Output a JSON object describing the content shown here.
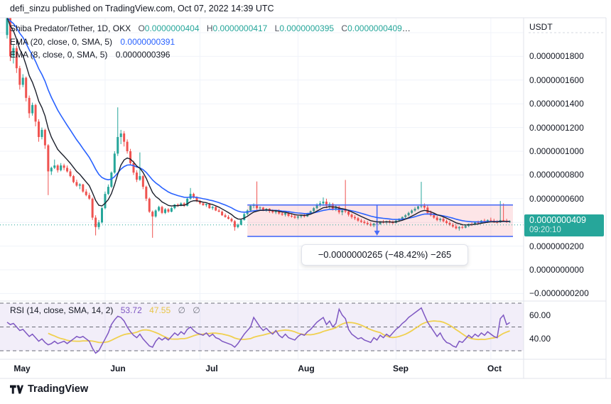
{
  "header": {
    "attribution": "defi_sinzu published on TradingView.com, Oct 07, 2022 14:39 UTC"
  },
  "main_legend": {
    "symbol_title": "Shiba Predator/Tether, 1D, OKX",
    "o_label": "O",
    "o_value": "0.0000000404",
    "h_label": "H",
    "h_value": "0.0000000417",
    "l_label": "L",
    "l_value": "0.0000000395",
    "c_label": "C",
    "c_value": "0.0000000409",
    "ellipsis": "…",
    "ema20_label": "EMA (20, close, 0, SMA, 5)",
    "ema20_value": "0.0000000391",
    "ema8_label": "EMA (8, close, 0, SMA, 5)",
    "ema8_value": "0.0000000396"
  },
  "price_axis": {
    "currency_label": "USDT",
    "ticks": [
      "0.0000001800",
      "0.0000001600",
      "0.0000001400",
      "0.0000001200",
      "0.0000001000",
      "0.0000000800",
      "0.0000000600",
      "0.0000000200",
      "0.0000000000",
      "−0.0000000200"
    ],
    "last_price_label": "0.0000000409",
    "countdown": "09:20:10"
  },
  "annotation": {
    "text": "−0.0000000265 (−48.42%) −265"
  },
  "rsi_legend": {
    "title": "RSI (14, close, SMA, 14, 2)",
    "rsi_value": "53.72",
    "ma_value": "47.55",
    "empty_1": "∅",
    "empty_2": "∅"
  },
  "rsi_axis": {
    "ticks": [
      "60.00",
      "40.00"
    ]
  },
  "time_axis": {
    "labels": [
      "May",
      "Jun",
      "Jul",
      "Aug",
      "Sep",
      "Oct"
    ]
  },
  "footer": {
    "brand": "TradingView"
  },
  "colors": {
    "up": "#26a69a",
    "down": "#ef5350",
    "ema20": "#2962ff",
    "ema8": "#1b1f2b",
    "rsi_line": "#7e57c2",
    "rsi_ma_line": "#f0d04f",
    "rsi_band_fill": "rgba(126,87,194,0.10)",
    "rsi_level_dash": "#6b6e78",
    "range_tool_fill": "rgba(242,54,69,0.13)",
    "range_tool_border": "#4a6cf7",
    "last_price_line": "#26a69a",
    "badge_bg": "#26a69a",
    "grid": "#f0f3fa",
    "frame_border": "#e0e3eb",
    "text": "#131722",
    "muted": "#787b86"
  },
  "chart_data": [
    {
      "type": "candlestick",
      "title": "Shiba Predator/Tether, 1D, OKX",
      "exchange": "OKX",
      "interval": "1D",
      "unit": 1e-10,
      "ylabel": "USDT",
      "ylim": [
        -300,
        2200
      ],
      "y_ticks": [
        2000,
        1800,
        1600,
        1400,
        1200,
        1000,
        800,
        600,
        400,
        200,
        0,
        -200
      ],
      "month_start_indices": {
        "May": 0,
        "Jun": 31,
        "Jul": 61,
        "Aug": 92,
        "Sep": 123,
        "Oct": 153
      },
      "last_price": 409,
      "overlays": [
        {
          "name": "EMA 20",
          "type": "ema",
          "period": 20,
          "source": "close"
        },
        {
          "name": "EMA 8",
          "type": "ema",
          "period": 8,
          "source": "close"
        }
      ],
      "price_range_tool": {
        "from_index": 76,
        "to_index": 160,
        "arrow_index": 117,
        "top": 547,
        "bottom": 282,
        "change": -265,
        "change_pct": -48.42,
        "label": "−0.0000000265 (−48.42%) −265"
      },
      "candles": [
        [
          1980,
          2185,
          1950,
          2130
        ],
        [
          2130,
          2150,
          1760,
          1800
        ],
        [
          1800,
          1900,
          1740,
          1870
        ],
        [
          1870,
          1890,
          1660,
          1700
        ],
        [
          1700,
          1720,
          1520,
          1560
        ],
        [
          1560,
          1650,
          1540,
          1620
        ],
        [
          1620,
          1630,
          1420,
          1450
        ],
        [
          1450,
          1470,
          1280,
          1320
        ],
        [
          1320,
          1410,
          1300,
          1390
        ],
        [
          1390,
          1400,
          1210,
          1250
        ],
        [
          1250,
          1270,
          1080,
          1120
        ],
        [
          1120,
          1200,
          1100,
          1180
        ],
        [
          1180,
          1190,
          1020,
          1050
        ],
        [
          1050,
          1060,
          630,
          830
        ],
        [
          830,
          870,
          800,
          860
        ],
        [
          860,
          930,
          850,
          880
        ],
        [
          880,
          890,
          820,
          840
        ],
        [
          840,
          900,
          830,
          880
        ],
        [
          880,
          895,
          840,
          860
        ],
        [
          860,
          880,
          820,
          830
        ],
        [
          830,
          850,
          780,
          790
        ],
        [
          790,
          800,
          730,
          740
        ],
        [
          740,
          760,
          700,
          710
        ],
        [
          710,
          730,
          680,
          720
        ],
        [
          720,
          725,
          650,
          660
        ],
        [
          660,
          680,
          620,
          630
        ],
        [
          630,
          650,
          590,
          600
        ],
        [
          600,
          610,
          420,
          440
        ],
        [
          440,
          460,
          290,
          360
        ],
        [
          360,
          420,
          340,
          400
        ],
        [
          400,
          530,
          390,
          520
        ],
        [
          520,
          660,
          510,
          640
        ],
        [
          640,
          720,
          630,
          700
        ],
        [
          700,
          830,
          690,
          820
        ],
        [
          820,
          1000,
          810,
          980
        ],
        [
          980,
          1370,
          960,
          1120
        ],
        [
          1120,
          1180,
          1060,
          1150
        ],
        [
          1150,
          1170,
          1040,
          1080
        ],
        [
          1080,
          1100,
          980,
          1000
        ],
        [
          1000,
          1020,
          880,
          900
        ],
        [
          900,
          920,
          800,
          820
        ],
        [
          820,
          840,
          740,
          760
        ],
        [
          760,
          990,
          750,
          790
        ],
        [
          790,
          800,
          680,
          700
        ],
        [
          700,
          710,
          580,
          600
        ],
        [
          600,
          610,
          480,
          490
        ],
        [
          490,
          500,
          270,
          450
        ],
        [
          450,
          510,
          440,
          500
        ],
        [
          500,
          540,
          490,
          530
        ],
        [
          530,
          540,
          470,
          480
        ],
        [
          480,
          520,
          470,
          510
        ],
        [
          510,
          520,
          480,
          490
        ],
        [
          490,
          530,
          485,
          520
        ],
        [
          520,
          555,
          510,
          550
        ],
        [
          550,
          560,
          530,
          540
        ],
        [
          540,
          570,
          535,
          560
        ],
        [
          560,
          570,
          530,
          540
        ],
        [
          540,
          610,
          535,
          600
        ],
        [
          600,
          690,
          590,
          640
        ],
        [
          640,
          650,
          600,
          610
        ],
        [
          610,
          620,
          570,
          580
        ],
        [
          580,
          590,
          550,
          560
        ],
        [
          560,
          575,
          540,
          545
        ],
        [
          545,
          560,
          530,
          555
        ],
        [
          555,
          565,
          515,
          520
        ],
        [
          520,
          540,
          505,
          530
        ],
        [
          530,
          535,
          495,
          500
        ],
        [
          500,
          515,
          485,
          490
        ],
        [
          490,
          500,
          455,
          460
        ],
        [
          460,
          475,
          440,
          445
        ],
        [
          445,
          460,
          425,
          430
        ],
        [
          430,
          440,
          400,
          410
        ],
        [
          410,
          420,
          330,
          360
        ],
        [
          360,
          390,
          350,
          380
        ],
        [
          380,
          430,
          375,
          420
        ],
        [
          420,
          480,
          415,
          470
        ],
        [
          470,
          510,
          460,
          500
        ],
        [
          500,
          550,
          490,
          540
        ],
        [
          540,
          560,
          520,
          545
        ],
        [
          545,
          745,
          505,
          520
        ],
        [
          520,
          535,
          500,
          525
        ],
        [
          525,
          530,
          495,
          505
        ],
        [
          505,
          520,
          490,
          515
        ],
        [
          515,
          520,
          480,
          495
        ],
        [
          495,
          510,
          475,
          485
        ],
        [
          485,
          505,
          470,
          500
        ],
        [
          500,
          510,
          465,
          475
        ],
        [
          475,
          490,
          455,
          465
        ],
        [
          465,
          485,
          450,
          480
        ],
        [
          480,
          490,
          445,
          455
        ],
        [
          455,
          470,
          440,
          450
        ],
        [
          450,
          465,
          430,
          440
        ],
        [
          440,
          455,
          425,
          450
        ],
        [
          450,
          465,
          435,
          460
        ],
        [
          460,
          470,
          440,
          450
        ],
        [
          450,
          480,
          445,
          475
        ],
        [
          475,
          500,
          465,
          495
        ],
        [
          495,
          530,
          480,
          520
        ],
        [
          520,
          560,
          510,
          545
        ],
        [
          545,
          580,
          530,
          560
        ],
        [
          560,
          610,
          540,
          575
        ],
        [
          575,
          600,
          520,
          540
        ],
        [
          540,
          570,
          510,
          555
        ],
        [
          555,
          565,
          500,
          515
        ],
        [
          515,
          545,
          495,
          530
        ],
        [
          530,
          540,
          470,
          485
        ],
        [
          485,
          520,
          460,
          500
        ],
        [
          505,
          758,
          478,
          492
        ],
        [
          492,
          505,
          450,
          465
        ],
        [
          465,
          475,
          430,
          445
        ],
        [
          445,
          460,
          420,
          435
        ],
        [
          435,
          445,
          405,
          415
        ],
        [
          415,
          430,
          395,
          405
        ],
        [
          405,
          420,
          385,
          395
        ],
        [
          395,
          410,
          375,
          385
        ],
        [
          385,
          400,
          365,
          375
        ],
        [
          375,
          395,
          360,
          390
        ],
        [
          390,
          405,
          375,
          385
        ],
        [
          385,
          410,
          380,
          405
        ],
        [
          405,
          420,
          390,
          400
        ],
        [
          400,
          415,
          385,
          410
        ],
        [
          410,
          420,
          390,
          400
        ],
        [
          400,
          415,
          385,
          395
        ],
        [
          395,
          420,
          390,
          415
        ],
        [
          415,
          435,
          405,
          430
        ],
        [
          430,
          450,
          420,
          445
        ],
        [
          445,
          470,
          435,
          460
        ],
        [
          460,
          490,
          450,
          480
        ],
        [
          480,
          510,
          470,
          500
        ],
        [
          500,
          530,
          490,
          515
        ],
        [
          515,
          540,
          505,
          535
        ],
        [
          535,
          742,
          520,
          540
        ],
        [
          540,
          560,
          510,
          525
        ],
        [
          525,
          545,
          470,
          480
        ],
        [
          480,
          500,
          450,
          460
        ],
        [
          460,
          480,
          430,
          440
        ],
        [
          440,
          455,
          410,
          420
        ],
        [
          420,
          440,
          405,
          430
        ],
        [
          430,
          445,
          400,
          410
        ],
        [
          410,
          425,
          385,
          395
        ],
        [
          395,
          410,
          370,
          380
        ],
        [
          380,
          395,
          355,
          365
        ],
        [
          365,
          385,
          340,
          350
        ],
        [
          350,
          370,
          330,
          360
        ],
        [
          360,
          375,
          345,
          355
        ],
        [
          355,
          380,
          350,
          370
        ],
        [
          370,
          390,
          360,
          385
        ],
        [
          385,
          400,
          370,
          380
        ],
        [
          380,
          405,
          375,
          400
        ],
        [
          400,
          415,
          385,
          395
        ],
        [
          395,
          420,
          390,
          415
        ],
        [
          415,
          430,
          400,
          410
        ],
        [
          410,
          425,
          395,
          420
        ],
        [
          420,
          440,
          405,
          415
        ],
        [
          415,
          430,
          395,
          405
        ],
        [
          405,
          420,
          390,
          400
        ],
        [
          400,
          580,
          395,
          420
        ],
        [
          420,
          560,
          410,
          415
        ],
        [
          415,
          430,
          395,
          404
        ],
        [
          404,
          417,
          395,
          409
        ]
      ]
    },
    {
      "type": "line",
      "name": "RSI (14, close, SMA, 14, 2)",
      "ylim": [
        22,
        78
      ],
      "levels": [
        70,
        50,
        30
      ],
      "y_ticks": [
        60,
        40
      ],
      "last_rsi": 53.72,
      "last_ma": 47.55,
      "ma_period": 14,
      "values": [
        54,
        52,
        53,
        50,
        47,
        48,
        45,
        42,
        44,
        41,
        38,
        40,
        37,
        35,
        36,
        38,
        36,
        37,
        38,
        36,
        38,
        40,
        42,
        41,
        42,
        40,
        38,
        32,
        28,
        30,
        35,
        40,
        45,
        52,
        56,
        59,
        58,
        55,
        50,
        46,
        43,
        41,
        44,
        40,
        37,
        34,
        33,
        38,
        41,
        39,
        41,
        39,
        42,
        45,
        43,
        46,
        44,
        48,
        50,
        47,
        45,
        44,
        43,
        45,
        42,
        44,
        41,
        40,
        38,
        37,
        36,
        35,
        33,
        36,
        40,
        44,
        47,
        50,
        58,
        54,
        50,
        47,
        49,
        46,
        44,
        47,
        43,
        41,
        44,
        41,
        40,
        39,
        42,
        44,
        43,
        46,
        48,
        51,
        54,
        56,
        58,
        52,
        55,
        50,
        53,
        65,
        60,
        57,
        48,
        44,
        42,
        40,
        41,
        39,
        38,
        37,
        41,
        39,
        43,
        41,
        44,
        42,
        45,
        48,
        50,
        53,
        55,
        58,
        60,
        62,
        64,
        66,
        60,
        54,
        50,
        46,
        42,
        45,
        40,
        37,
        36,
        34,
        33,
        38,
        37,
        40,
        43,
        41,
        44,
        42,
        45,
        43,
        46,
        44,
        42,
        41,
        57,
        60,
        52,
        53.72
      ]
    }
  ]
}
